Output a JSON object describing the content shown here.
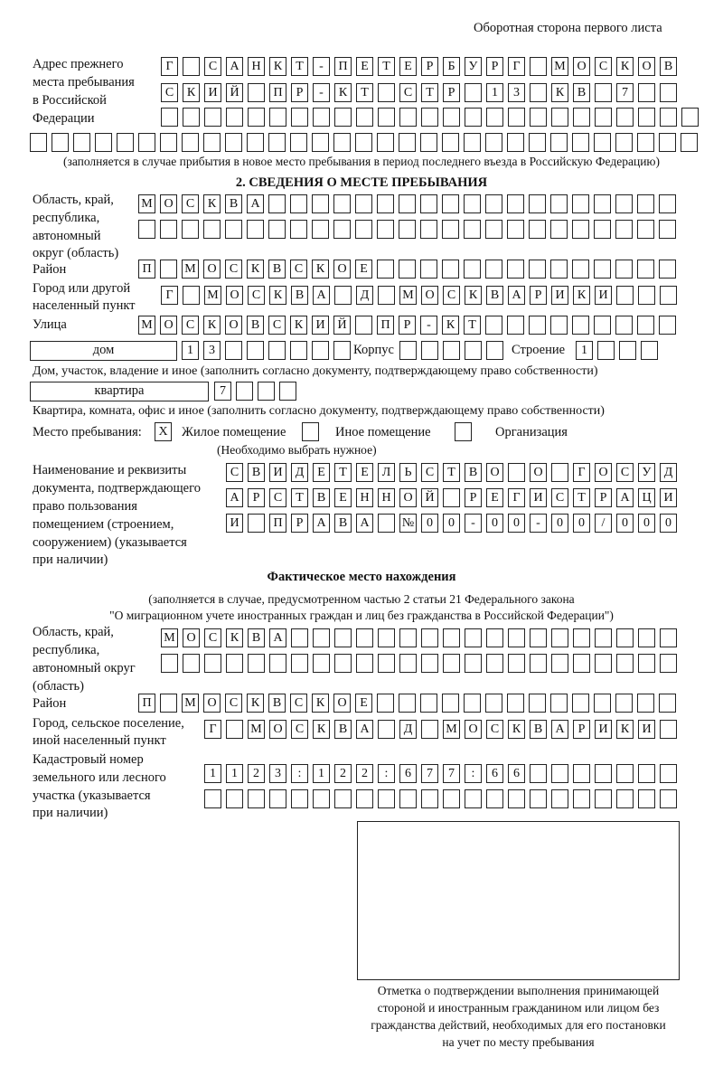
{
  "header": "Оборотная сторона первого листа",
  "prev_address": {
    "label": [
      "Адрес прежнего",
      "места пребывания",
      "в Российской",
      "Федерации"
    ],
    "rows": [
      [
        "Г",
        " ",
        "С",
        "А",
        "Н",
        "К",
        "Т",
        "-",
        "П",
        "Е",
        "Т",
        "Е",
        "Р",
        "Б",
        "У",
        "Р",
        "Г",
        " ",
        "М",
        "О",
        "С",
        "К",
        "О",
        "В"
      ],
      [
        "С",
        "К",
        "И",
        "Й",
        " ",
        "П",
        "Р",
        "-",
        "К",
        "Т",
        " ",
        "С",
        "Т",
        "Р",
        " ",
        "1",
        "3",
        " ",
        "К",
        "В",
        " ",
        "7",
        " ",
        " "
      ],
      [
        " ",
        " ",
        " ",
        " ",
        " ",
        " ",
        " ",
        " ",
        " ",
        " ",
        " ",
        " ",
        " ",
        " ",
        " ",
        " ",
        " ",
        " ",
        " ",
        " ",
        " ",
        " ",
        " ",
        " ",
        " "
      ],
      [
        " ",
        " ",
        " ",
        " ",
        " ",
        " ",
        " ",
        " ",
        " ",
        " ",
        " ",
        " ",
        " ",
        " ",
        " ",
        " ",
        " ",
        " ",
        " ",
        " ",
        " ",
        " ",
        " ",
        " ",
        " ",
        " ",
        " ",
        " ",
        " ",
        " ",
        " "
      ]
    ],
    "note": "(заполняется в случае прибытия в новое место пребывания в период последнего въезда в Российскую Федерацию)"
  },
  "section2": {
    "title": "2. СВЕДЕНИЯ О МЕСТЕ ПРЕБЫВАНИЯ",
    "region_label": [
      "Область, край,",
      "республика,",
      "автономный",
      "округ (область)"
    ],
    "region_rows": [
      [
        "М",
        "О",
        "С",
        "К",
        "В",
        "А",
        " ",
        " ",
        " ",
        " ",
        " ",
        " ",
        " ",
        " ",
        " ",
        " ",
        " ",
        " ",
        " ",
        " ",
        " ",
        " ",
        " ",
        " ",
        " "
      ],
      [
        " ",
        " ",
        " ",
        " ",
        " ",
        " ",
        " ",
        " ",
        " ",
        " ",
        " ",
        " ",
        " ",
        " ",
        " ",
        " ",
        " ",
        " ",
        " ",
        " ",
        " ",
        " ",
        " ",
        " ",
        " "
      ]
    ],
    "district_label": "Район",
    "district": [
      "П",
      " ",
      "М",
      "О",
      "С",
      "К",
      "В",
      "С",
      "К",
      "О",
      "Е",
      " ",
      " ",
      " ",
      " ",
      " ",
      " ",
      " ",
      " ",
      " ",
      " ",
      " ",
      " ",
      " ",
      " "
    ],
    "city_label": [
      "Город или другой",
      "населенный пункт"
    ],
    "city": [
      "Г",
      " ",
      "М",
      "О",
      "С",
      "К",
      "В",
      "А",
      " ",
      "Д",
      " ",
      "М",
      "О",
      "С",
      "К",
      "В",
      "А",
      "Р",
      "И",
      "К",
      "И",
      " ",
      " ",
      " "
    ],
    "street_label": "Улица",
    "street": [
      "М",
      "О",
      "С",
      "К",
      "О",
      "В",
      "С",
      "К",
      "И",
      "Й",
      " ",
      "П",
      "Р",
      "-",
      "К",
      "Т",
      " ",
      " ",
      " ",
      " ",
      " ",
      " ",
      " ",
      " ",
      " "
    ],
    "house_type": "дом",
    "house": [
      "1",
      "3",
      " ",
      " ",
      " ",
      " ",
      " ",
      " "
    ],
    "korpus_label": "Корпус",
    "korpus": [
      " ",
      " ",
      " ",
      " ",
      " "
    ],
    "stroenie_label": "Строение",
    "stroenie": [
      "1",
      " ",
      " ",
      " "
    ],
    "house_note": "Дом, участок, владение и иное (заполнить согласно документу, подтверждающему право собственности)",
    "flat_type": "квартира",
    "flat": [
      "7",
      " ",
      " ",
      " "
    ],
    "flat_note": "Квартира, комната, офис и иное (заполнить согласно документу, подтверждающему право собственности)",
    "stay_label": "Место пребывания:",
    "stay_options": [
      {
        "label": "Жилое помещение",
        "mark": "X"
      },
      {
        "label": "Иное помещение",
        "mark": ""
      },
      {
        "label": "Организация",
        "mark": ""
      }
    ],
    "stay_note": "(Необходимо выбрать нужное)",
    "doc_label": [
      "Наименование и реквизиты",
      "документа, подтверждающего",
      "право пользования",
      "помещением (строением,",
      "сооружением) (указывается",
      "при наличии)"
    ],
    "doc_rows": [
      [
        "С",
        "В",
        "И",
        "Д",
        "Е",
        "Т",
        "Е",
        "Л",
        "Ь",
        "С",
        "Т",
        "В",
        "О",
        " ",
        "О",
        " ",
        "Г",
        "О",
        "С",
        "У",
        "Д"
      ],
      [
        "А",
        "Р",
        "С",
        "Т",
        "В",
        "Е",
        "Н",
        "Н",
        "О",
        "Й",
        " ",
        "Р",
        "Е",
        "Г",
        "И",
        "С",
        "Т",
        "Р",
        "А",
        "Ц",
        "И"
      ],
      [
        "И",
        " ",
        "П",
        "Р",
        "А",
        "В",
        "А",
        " ",
        "№",
        "0",
        "0",
        "-",
        "0",
        "0",
        "-",
        "0",
        "0",
        "/",
        "0",
        "0",
        "0"
      ]
    ]
  },
  "actual": {
    "title": "Фактическое место нахождения",
    "note": [
      "(заполняется в случае, предусмотренном частью 2 статьи 21 Федерального закона",
      "\"О миграционном учете иностранных граждан и лиц без гражданства в Российской Федерации\")"
    ],
    "region_label": [
      "Область, край,",
      "республика,",
      "автономный округ",
      "(область)"
    ],
    "region_rows": [
      [
        "М",
        "О",
        "С",
        "К",
        "В",
        "А",
        " ",
        " ",
        " ",
        " ",
        " ",
        " ",
        " ",
        " ",
        " ",
        " ",
        " ",
        " ",
        " ",
        " ",
        " ",
        " ",
        " ",
        " "
      ],
      [
        " ",
        " ",
        " ",
        " ",
        " ",
        " ",
        " ",
        " ",
        " ",
        " ",
        " ",
        " ",
        " ",
        " ",
        " ",
        " ",
        " ",
        " ",
        " ",
        " ",
        " ",
        " ",
        " ",
        " "
      ]
    ],
    "district_label": "Район",
    "district": [
      "П",
      " ",
      "М",
      "О",
      "С",
      "К",
      "В",
      "С",
      "К",
      "О",
      "Е",
      " ",
      " ",
      " ",
      " ",
      " ",
      " ",
      " ",
      " ",
      " ",
      " ",
      " ",
      " ",
      " ",
      " "
    ],
    "city_label": [
      "Город, сельское поселение,",
      "иной населенный пункт"
    ],
    "city": [
      "Г",
      " ",
      "М",
      "О",
      "С",
      "К",
      "В",
      "А",
      " ",
      "Д",
      " ",
      "М",
      "О",
      "С",
      "К",
      "В",
      "А",
      "Р",
      "И",
      "К",
      "И",
      " "
    ],
    "cadastral_label": [
      "Кадастровый номер",
      "земельного или лесного",
      "участка (указывается",
      "при наличии)"
    ],
    "cadastral_rows": [
      [
        "1",
        "1",
        "2",
        "3",
        ":",
        "1",
        "2",
        "2",
        ":",
        "6",
        "7",
        "7",
        ":",
        "6",
        "6",
        " ",
        " ",
        " ",
        " ",
        " ",
        " ",
        " "
      ],
      [
        " ",
        " ",
        " ",
        " ",
        " ",
        " ",
        " ",
        " ",
        " ",
        " ",
        " ",
        " ",
        " ",
        " ",
        " ",
        " ",
        " ",
        " ",
        " ",
        " ",
        " ",
        " "
      ]
    ]
  },
  "stamp": {
    "caption": [
      "Отметка о подтверждении выполнения принимающей",
      "стороной и иностранным гражданином или лицом без",
      "гражданства действий, необходимых для его постановки",
      "на учет по месту пребывания"
    ]
  }
}
